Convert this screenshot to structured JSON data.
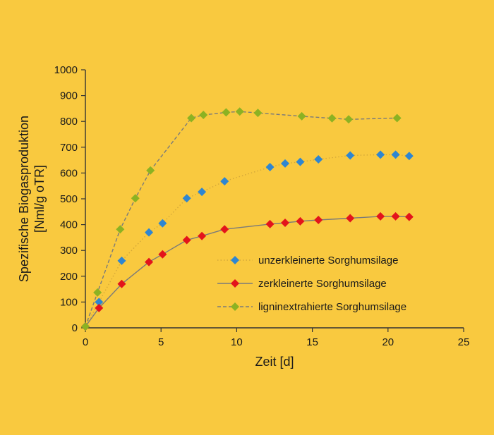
{
  "chart_data": {
    "type": "line",
    "title": "",
    "xlabel": "Zeit [d]",
    "ylabel_lines": [
      "Spezifische Biogasproduktion",
      "[Nml/g oTR]"
    ],
    "xlim": [
      0,
      25
    ],
    "ylim": [
      0,
      1000
    ],
    "xticks": [
      "0",
      "5",
      "10",
      "15",
      "20",
      "25"
    ],
    "yticks": [
      "0",
      "100",
      "200",
      "300",
      "400",
      "500",
      "600",
      "700",
      "800",
      "900",
      "1000"
    ],
    "grid": false,
    "legend_position": "center-right",
    "series": [
      {
        "name": "unzerkleinerte Sorghumsilage",
        "color": "#2E86D1",
        "line_color": "#D4A83A",
        "line_style": "dotted",
        "x": [
          0,
          0.9,
          2.4,
          4.2,
          5.1,
          6.7,
          7.7,
          9.2,
          12.2,
          13.2,
          14.2,
          15.4,
          17.5,
          19.5,
          20.5,
          21.4
        ],
        "y": [
          5,
          100,
          260,
          370,
          405,
          502,
          527,
          568,
          623,
          637,
          643,
          653,
          668,
          671,
          671,
          666
        ]
      },
      {
        "name": "zerkleinerte Sorghumsilage",
        "color": "#E3141B",
        "line_color": "#7A7A7A",
        "line_style": "solid",
        "x": [
          0,
          0.9,
          2.4,
          4.2,
          5.1,
          6.7,
          7.7,
          9.2,
          12.2,
          13.2,
          14.2,
          15.4,
          17.5,
          19.5,
          20.5,
          21.4
        ],
        "y": [
          5,
          77,
          170,
          255,
          285,
          340,
          356,
          382,
          402,
          407,
          413,
          418,
          425,
          432,
          432,
          430
        ]
      },
      {
        "name": "ligninextrahierte Sorghumsilage",
        "color": "#8CB222",
        "line_color": "#7A7A7A",
        "line_style": "dashed",
        "x": [
          0,
          0.8,
          2.3,
          3.3,
          4.3,
          7.0,
          7.8,
          9.3,
          10.2,
          11.4,
          14.3,
          16.3,
          17.4,
          20.6
        ],
        "y": [
          5,
          137,
          382,
          502,
          610,
          813,
          825,
          835,
          838,
          833,
          820,
          812,
          808,
          813
        ]
      }
    ]
  }
}
